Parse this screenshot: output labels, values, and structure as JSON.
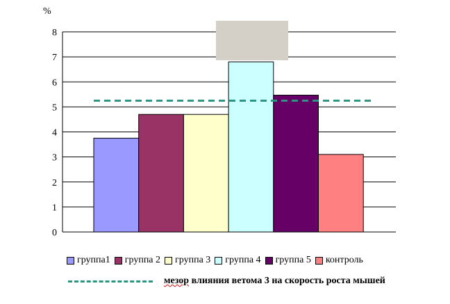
{
  "chart_data": {
    "type": "bar",
    "ylabel": "%",
    "ylim": [
      0,
      8
    ],
    "yticks": [
      0,
      1,
      2,
      3,
      4,
      5,
      6,
      7,
      8
    ],
    "grid": true,
    "legend_position": "bottom",
    "series": [
      {
        "name": "группа1",
        "value": 3.75,
        "color": "#9999ff"
      },
      {
        "name": "группа 2",
        "value": 4.7,
        "color": "#993366"
      },
      {
        "name": "группа 3",
        "value": 4.7,
        "color": "#ffffcc"
      },
      {
        "name": "группа 4",
        "value": 6.8,
        "color": "#ccffff"
      },
      {
        "name": "группа 5",
        "value": 5.47,
        "color": "#660066"
      },
      {
        "name": "контроль",
        "value": 3.1,
        "color": "#ff8080"
      }
    ],
    "reference_line": {
      "value": 5.25,
      "color": "#2a9580",
      "style": "dashed"
    }
  },
  "note": {
    "prefix": "мезор",
    "text": " влияния ветома 3 на скорость роста мышей"
  }
}
